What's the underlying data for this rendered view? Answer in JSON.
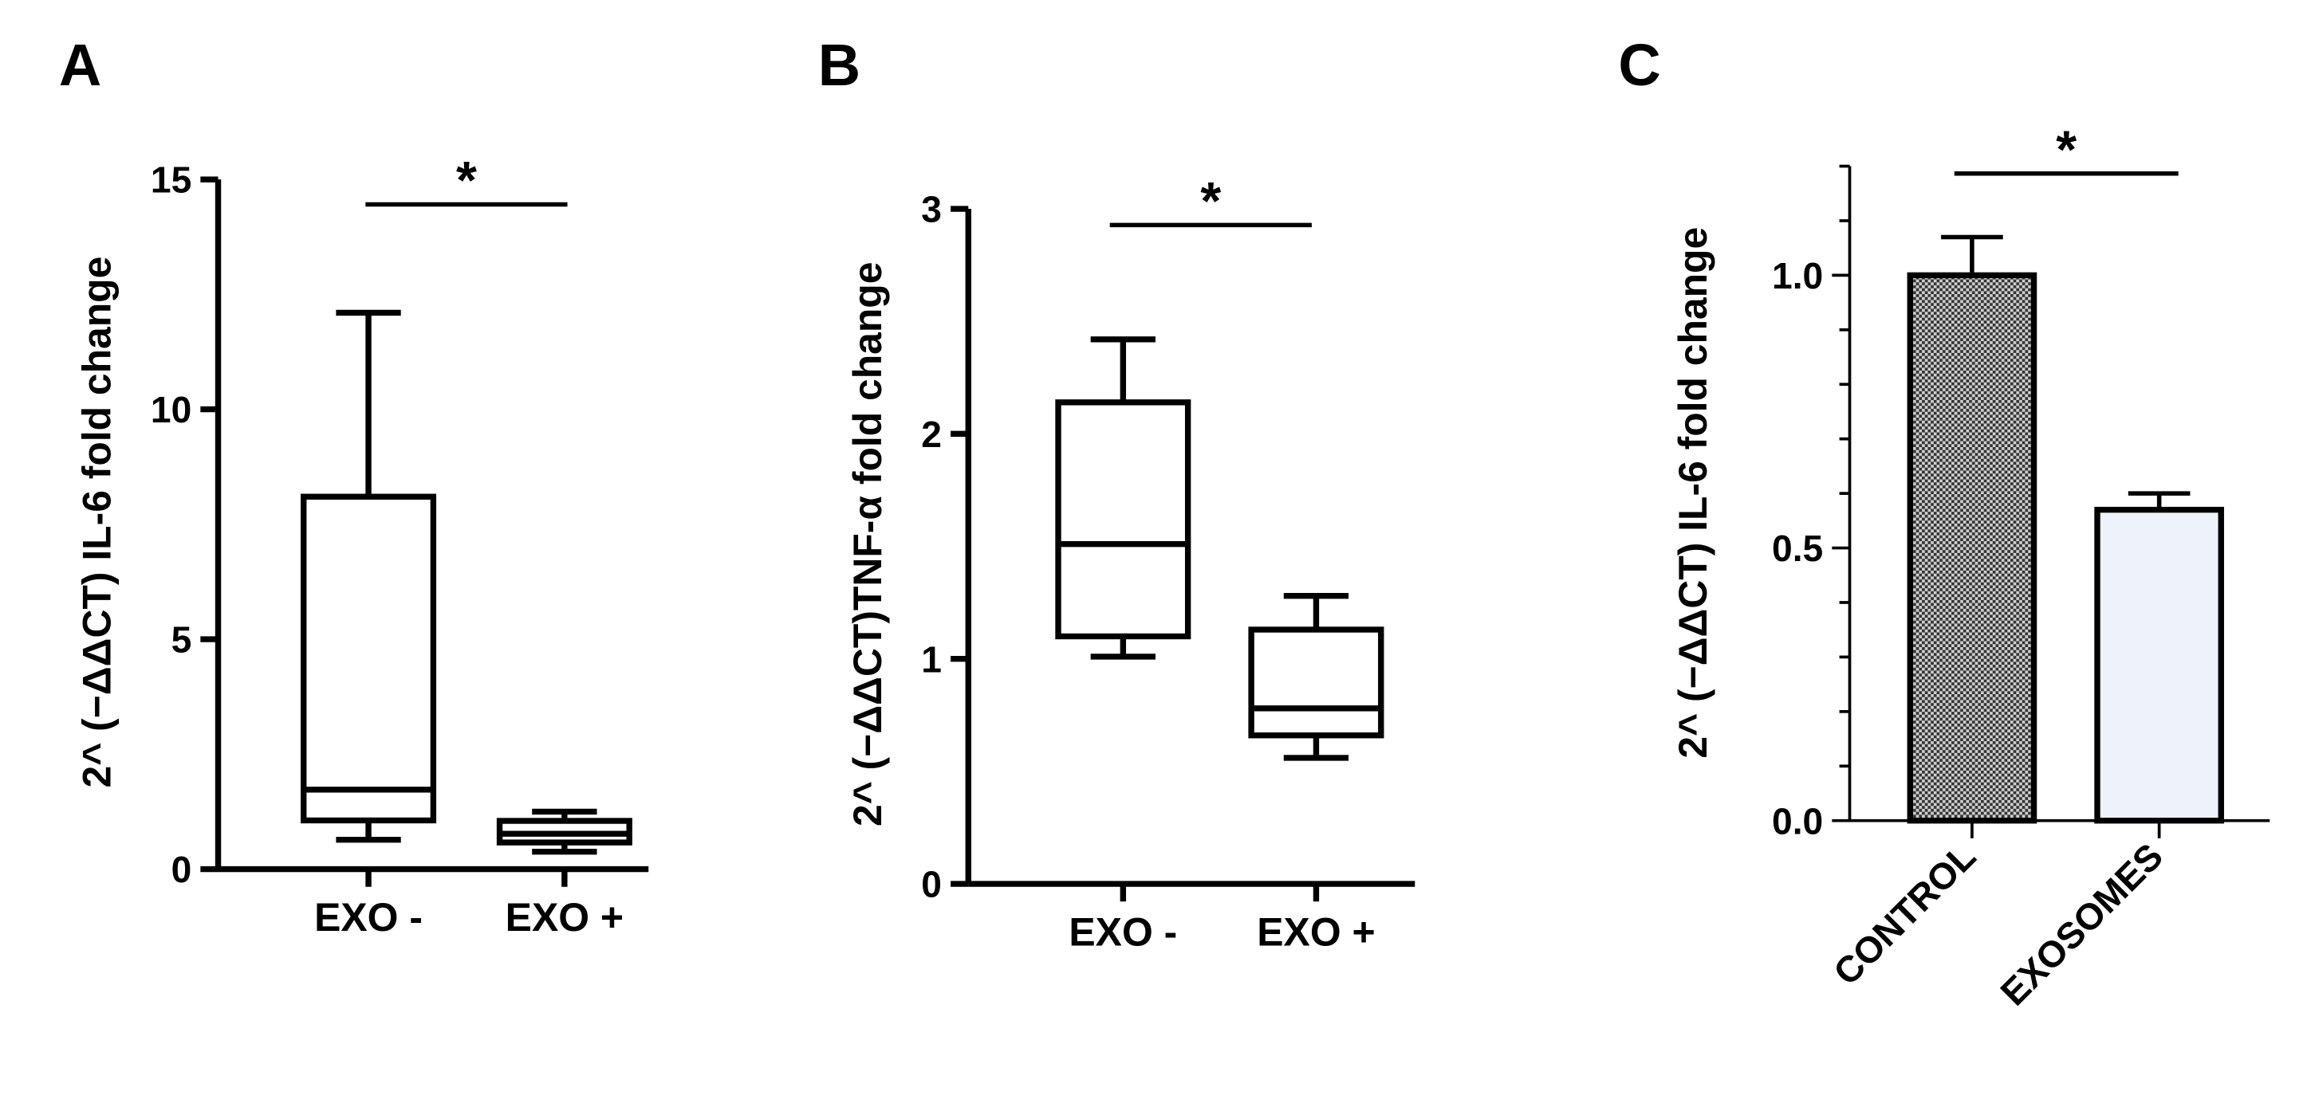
{
  "chart_data": [
    {
      "type": "box",
      "panel": "A",
      "ylabel": "2^ (−ΔΔCT) IL-6 fold change",
      "categories": [
        "EXO -",
        "EXO +"
      ],
      "boxes": [
        {
          "whislo": 0.64,
          "q1": 1.06,
          "med": 1.73,
          "q3": 8.1,
          "whishi": 12.1
        },
        {
          "whislo": 0.38,
          "q1": 0.58,
          "med": 0.77,
          "q3": 1.05,
          "whishi": 1.25
        }
      ],
      "ylim": [
        0,
        15
      ],
      "yticks": [
        0,
        5,
        10,
        15
      ],
      "significance": "*"
    },
    {
      "type": "box",
      "panel": "B",
      "ylabel": "2^ (−ΔΔCT)TNF-α fold change",
      "categories": [
        "EXO -",
        "EXO +"
      ],
      "boxes": [
        {
          "whislo": 1.01,
          "q1": 1.1,
          "med": 1.51,
          "q3": 2.14,
          "whishi": 2.42
        },
        {
          "whislo": 0.56,
          "q1": 0.66,
          "med": 0.78,
          "q3": 1.13,
          "whishi": 1.28
        }
      ],
      "ylim": [
        0,
        3
      ],
      "yticks": [
        0,
        1,
        2,
        3
      ],
      "significance": "*"
    },
    {
      "type": "bar",
      "panel": "C",
      "ylabel": "2^ (−ΔΔCT) IL-6 fold change",
      "categories": [
        "CONTROL",
        "EXOSOMES"
      ],
      "values": [
        1.0,
        0.57
      ],
      "errors": [
        0.07,
        0.03
      ],
      "fills": [
        "checker",
        "#eef2fb"
      ],
      "ylim": [
        0,
        1.2
      ],
      "yticks": [
        {
          "value": 0,
          "label": "0.0"
        },
        {
          "value": 0.5,
          "label": "0.5"
        },
        {
          "value": 1,
          "label": "1.0"
        }
      ],
      "yminorticks": [
        0.1,
        0.2,
        0.3,
        0.4,
        0.6,
        0.7,
        0.8,
        0.9,
        1.1,
        1.2
      ],
      "significance": "*"
    }
  ]
}
